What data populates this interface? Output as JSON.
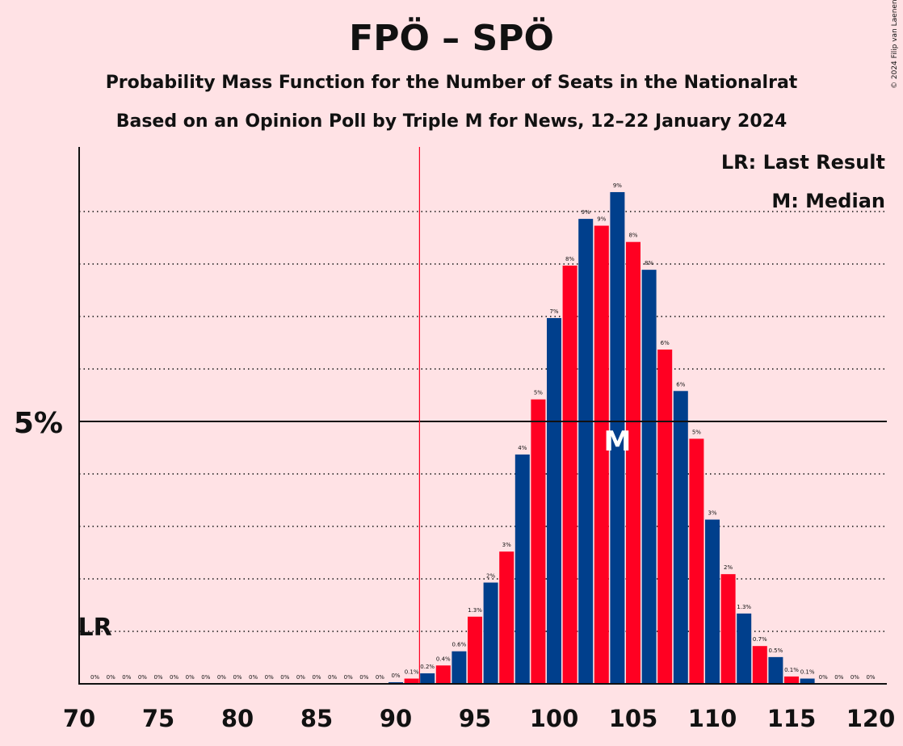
{
  "title": "FPÖ – SPÖ",
  "subtitle1": "Probability Mass Function for the Number of Seats in the Nationalrat",
  "subtitle2": "Based on an Opinion Poll by Triple M for News, 12–22 January 2024",
  "copyright": "© 2024 Filip van Laenen",
  "legend": {
    "lr": "LR: Last Result",
    "median": "M: Median"
  },
  "markers": {
    "lr_label": "LR",
    "median_label": "M"
  },
  "colors": {
    "background": "#FFE2E5",
    "blue": "#003F8C",
    "red": "#FF0022",
    "lr_line": "#FF0022"
  },
  "chart_data": {
    "type": "bar",
    "xlim": [
      70,
      120
    ],
    "x_ticks": [
      "70",
      "75",
      "80",
      "85",
      "90",
      "95",
      "100",
      "105",
      "110",
      "115",
      "120"
    ],
    "y_tick_label": "5%",
    "last_result": 71,
    "lr_line_x": 91.5,
    "median": 104,
    "seats": [
      71,
      72,
      73,
      74,
      75,
      76,
      77,
      78,
      79,
      80,
      81,
      82,
      83,
      84,
      85,
      86,
      87,
      88,
      89,
      90,
      91,
      92,
      93,
      94,
      95,
      96,
      97,
      98,
      99,
      100,
      101,
      102,
      103,
      104,
      105,
      106,
      107,
      108,
      109,
      110,
      111,
      112,
      113,
      114,
      115,
      116,
      117,
      118,
      119,
      120
    ],
    "values": [
      0,
      0,
      0,
      0,
      0,
      0,
      0,
      0,
      0,
      0,
      0,
      0,
      0,
      0,
      0,
      0,
      0,
      0,
      0,
      0.03,
      0.1,
      0.2,
      0.35,
      0.62,
      1.28,
      1.93,
      2.52,
      4.37,
      5.42,
      6.97,
      7.97,
      8.86,
      8.73,
      9.37,
      8.42,
      7.89,
      6.37,
      5.58,
      4.67,
      3.13,
      2.09,
      1.34,
      0.72,
      0.51,
      0.14,
      0.1,
      0,
      0,
      0,
      0
    ],
    "labels": [
      "0%",
      "0%",
      "0%",
      "0%",
      "0%",
      "0%",
      "0%",
      "0%",
      "0%",
      "0%",
      "0%",
      "0%",
      "0%",
      "0%",
      "0%",
      "0%",
      "0%",
      "0%",
      "0%",
      "0%",
      "0.1%",
      "0.2%",
      "0.4%",
      "0.6%",
      "1.3%",
      "2%",
      "3%",
      "4%",
      "5%",
      "7%",
      "8%",
      "9%",
      "9%",
      "9%",
      "8%",
      "8%",
      "6%",
      "6%",
      "5%",
      "3%",
      "2%",
      "1.3%",
      "0.7%",
      "0.5%",
      "0.1%",
      "0.1%",
      "0%",
      "0%",
      "0%",
      "0%"
    ]
  }
}
